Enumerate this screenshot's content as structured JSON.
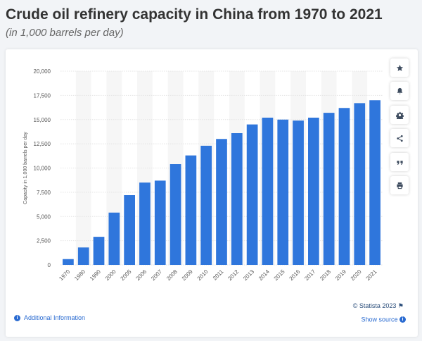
{
  "header": {
    "title": "Crude oil refinery capacity in China from 1970 to 2021",
    "subtitle": "(in 1,000 barrels per day)"
  },
  "toolbar": {
    "buttons": [
      {
        "name": "favorite-button",
        "icon": "star-icon"
      },
      {
        "name": "notification-button",
        "icon": "bell-icon"
      },
      {
        "name": "settings-button",
        "icon": "gear-icon"
      },
      {
        "name": "share-button",
        "icon": "share-icon"
      },
      {
        "name": "cite-button",
        "icon": "quote-icon"
      },
      {
        "name": "print-button",
        "icon": "print-icon"
      }
    ]
  },
  "footer": {
    "credit": "© Statista 2023",
    "additional_info": "Additional Information",
    "show_source": "Show source"
  },
  "colors": {
    "bar": "#2f76dc",
    "grid": "#e4e4e4",
    "band": "#f6f6f6",
    "axis_text": "#555555"
  },
  "chart_data": {
    "type": "bar",
    "title": "",
    "xlabel": "",
    "ylabel": "Capacity in 1,000 barrels per day",
    "ylim": [
      0,
      20000
    ],
    "yticks": [
      0,
      2500,
      5000,
      7500,
      10000,
      12500,
      15000,
      17500,
      20000
    ],
    "ytick_labels": [
      "0",
      "2,500",
      "5,000",
      "7,500",
      "10,000",
      "12,500",
      "15,000",
      "17,500",
      "20,000"
    ],
    "categories": [
      "1970",
      "1980",
      "1990",
      "2000",
      "2005",
      "2006",
      "2007",
      "2008",
      "2009",
      "2010",
      "2011",
      "2012",
      "2013",
      "2014",
      "2015",
      "2016",
      "2017",
      "2018",
      "2019",
      "2020",
      "2021"
    ],
    "values": [
      600,
      1800,
      2900,
      5400,
      7200,
      8500,
      8700,
      10400,
      11300,
      12300,
      13000,
      13600,
      14500,
      15200,
      15000,
      14900,
      15200,
      15700,
      16200,
      16700,
      17000
    ],
    "grid": true
  }
}
